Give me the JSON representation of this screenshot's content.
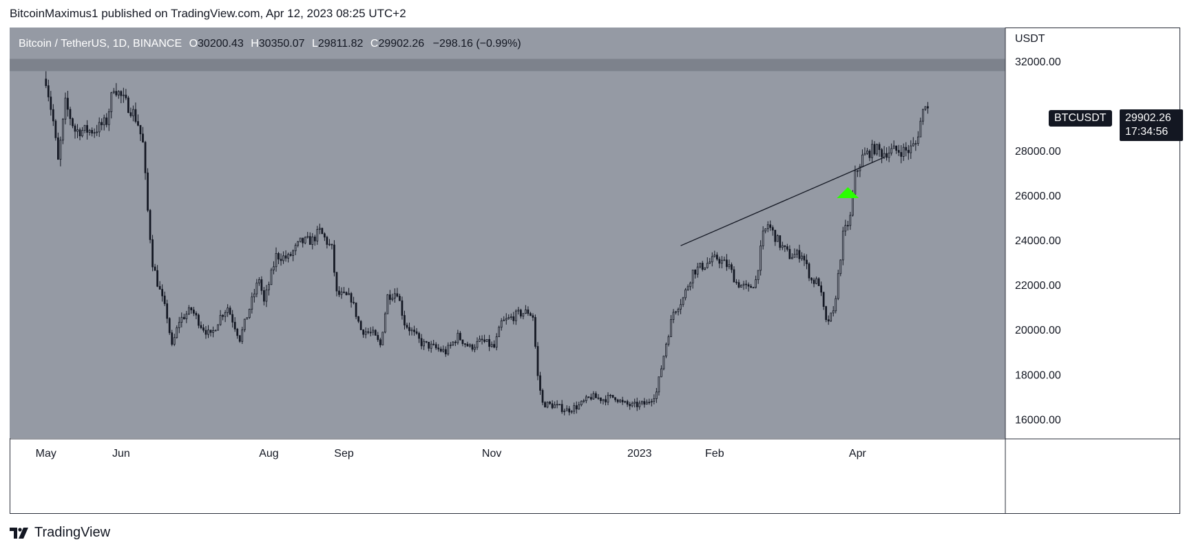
{
  "header": {
    "published": "BitcoinMaximus1 published on TradingView.com, Apr 12, 2023 08:25 UTC+2"
  },
  "legend": {
    "symbol": "Bitcoin / TetherUS, 1D, BINANCE",
    "o_label": "O",
    "o_value": "30200.43",
    "h_label": "H",
    "h_value": "30350.07",
    "l_label": "L",
    "l_value": "29811.82",
    "c_label": "C",
    "c_value": "29902.26",
    "change": "−298.16 (−0.99%)"
  },
  "price_badge": {
    "symbol": "BTCUSDT",
    "price": "29902.26",
    "countdown": "17:34:56"
  },
  "footer": {
    "brand": "TradingView"
  },
  "colors": {
    "background": "#ffffff",
    "plot_bg": "#959aa4",
    "candle": "#131722",
    "resistance_band": "#7d828c",
    "arrow": "#2bff00"
  },
  "icons": {
    "logo": "tradingview-logo-icon"
  },
  "chart_data": {
    "type": "candlestick",
    "currency_label": "USDT",
    "y_axis_side": "right",
    "ylim": [
      15150,
      33500
    ],
    "y_ticks": [
      "32000.00",
      "28000.00",
      "26000.00",
      "24000.00",
      "22000.00",
      "20000.00",
      "18000.00",
      "16000.00"
    ],
    "x_ticks": [
      "May",
      "Jun",
      "Aug",
      "Sep",
      "Nov",
      "2023",
      "Feb",
      "Apr"
    ],
    "x_tick_days": [
      0,
      31,
      92,
      123,
      184,
      245,
      276,
      335
    ],
    "x_range_days": [
      -15,
      396
    ],
    "resistance_zone": [
      31550,
      32100
    ],
    "trendline": {
      "start": {
        "day": 262,
        "value": 23750
      },
      "end": {
        "day": 346,
        "value": 27700
      }
    },
    "support_arrow": {
      "day": 331,
      "value": 26000
    },
    "path_anchors": [
      [
        0,
        31200
      ],
      [
        3,
        29300
      ],
      [
        5,
        27500
      ],
      [
        8,
        30100
      ],
      [
        12,
        28900
      ],
      [
        20,
        28900
      ],
      [
        25,
        29300
      ],
      [
        28,
        30900
      ],
      [
        31,
        30400
      ],
      [
        36,
        29700
      ],
      [
        38,
        29200
      ],
      [
        40,
        28300
      ],
      [
        42,
        25300
      ],
      [
        44,
        23000
      ],
      [
        46,
        22100
      ],
      [
        50,
        20600
      ],
      [
        52,
        19200
      ],
      [
        55,
        20400
      ],
      [
        60,
        20900
      ],
      [
        64,
        20200
      ],
      [
        68,
        19700
      ],
      [
        72,
        20600
      ],
      [
        75,
        21000
      ],
      [
        80,
        19600
      ],
      [
        88,
        22300
      ],
      [
        90,
        21200
      ],
      [
        95,
        23300
      ],
      [
        100,
        23200
      ],
      [
        105,
        23900
      ],
      [
        110,
        24000
      ],
      [
        113,
        24400
      ],
      [
        118,
        23600
      ],
      [
        120,
        21600
      ],
      [
        126,
        21400
      ],
      [
        130,
        20000
      ],
      [
        135,
        19800
      ],
      [
        138,
        19300
      ],
      [
        141,
        21500
      ],
      [
        145,
        21700
      ],
      [
        148,
        20300
      ],
      [
        155,
        19400
      ],
      [
        160,
        19200
      ],
      [
        165,
        19000
      ],
      [
        170,
        19700
      ],
      [
        175,
        19200
      ],
      [
        180,
        19500
      ],
      [
        185,
        19200
      ],
      [
        188,
        20300
      ],
      [
        195,
        20700
      ],
      [
        199,
        20800
      ],
      [
        201,
        20600
      ],
      [
        203,
        17900
      ],
      [
        205,
        16700
      ],
      [
        210,
        16600
      ],
      [
        215,
        16400
      ],
      [
        220,
        16600
      ],
      [
        225,
        17000
      ],
      [
        230,
        16900
      ],
      [
        235,
        17000
      ],
      [
        238,
        16700
      ],
      [
        242,
        16600
      ],
      [
        248,
        16700
      ],
      [
        252,
        17200
      ],
      [
        256,
        19400
      ],
      [
        259,
        20800
      ],
      [
        263,
        21400
      ],
      [
        267,
        22600
      ],
      [
        272,
        22900
      ],
      [
        277,
        23200
      ],
      [
        282,
        22800
      ],
      [
        285,
        22100
      ],
      [
        290,
        21800
      ],
      [
        293,
        22200
      ],
      [
        296,
        24200
      ],
      [
        298,
        24700
      ],
      [
        303,
        23800
      ],
      [
        307,
        23300
      ],
      [
        312,
        23400
      ],
      [
        316,
        22200
      ],
      [
        319,
        22100
      ],
      [
        322,
        20300
      ],
      [
        325,
        20700
      ],
      [
        327,
        22400
      ],
      [
        329,
        24200
      ],
      [
        332,
        25000
      ],
      [
        334,
        26900
      ],
      [
        337,
        27700
      ],
      [
        342,
        28100
      ],
      [
        345,
        27900
      ],
      [
        350,
        28000
      ],
      [
        356,
        28000
      ],
      [
        359,
        28300
      ],
      [
        361,
        29300
      ],
      [
        363,
        30200
      ],
      [
        364,
        29902
      ]
    ]
  }
}
